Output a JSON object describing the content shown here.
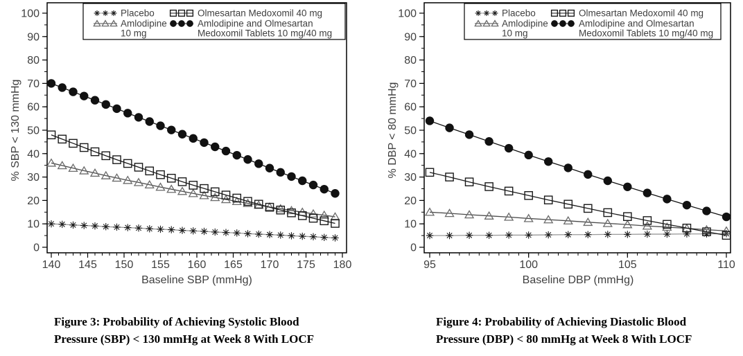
{
  "page": {
    "background": "#ffffff"
  },
  "colors": {
    "frame": "#000000",
    "tick_label": "#3f3f3f",
    "axis_title": "#3a3a3a",
    "legend_text": "#222222",
    "placebo_line": "#999999",
    "placebo_marker": "#1a1a1a",
    "amlodipine_line": "#4a4a4a",
    "amlodipine_marker": "#6a6a6a",
    "olmesartan_line": "#1a1a1a",
    "olmesartan_marker": "#1a1a1a",
    "combo_line": "#111111",
    "combo_marker": "#111111"
  },
  "legend": {
    "columns": [
      [
        {
          "marker": "asterisk",
          "lines": [
            "Placebo"
          ]
        },
        {
          "marker": "triangle-open",
          "lines": [
            "Amlodipine",
            "10 mg"
          ]
        }
      ],
      [
        {
          "marker": "square-open",
          "lines": [
            "Olmesartan Medoxomil 40 mg"
          ]
        },
        {
          "marker": "circle-filled",
          "lines": [
            "Amlodipine and Olmesartan",
            "Medoxomil Tablets 10 mg/40 mg"
          ]
        }
      ]
    ]
  },
  "chart_data": [
    {
      "id": "sbp",
      "type": "line",
      "xlabel": "Baseline SBP (mmHg)",
      "ylabel": "% SBP < 130 mmHg",
      "xlim": [
        140,
        180
      ],
      "ylim": [
        0,
        100
      ],
      "xticks": [
        140,
        145,
        150,
        155,
        160,
        165,
        170,
        175,
        180
      ],
      "yticks": [
        0,
        10,
        20,
        30,
        40,
        50,
        60,
        70,
        80,
        90,
        100
      ],
      "x_minor_step": 1,
      "y_minor_step": 5,
      "legend_position": "top-inside",
      "grid": false,
      "x": [
        140,
        141.5,
        143,
        144.5,
        146,
        147.5,
        149,
        150.5,
        152,
        153.5,
        155,
        156.5,
        158,
        159.5,
        161,
        162.5,
        164,
        165.5,
        167,
        168.5,
        170,
        171.5,
        173,
        174.5,
        176,
        177.5,
        179
      ],
      "series": [
        {
          "name": "Placebo",
          "marker": "asterisk",
          "marker_color": "#1a1a1a",
          "line_color": "#999999",
          "values": [
            10,
            9.8,
            9.5,
            9.3,
            9.1,
            8.8,
            8.6,
            8.4,
            8.2,
            7.9,
            7.7,
            7.5,
            7.2,
            7.0,
            6.8,
            6.5,
            6.3,
            6.1,
            5.8,
            5.6,
            5.4,
            5.2,
            4.9,
            4.7,
            4.5,
            4.2,
            4.0
          ]
        },
        {
          "name": "Amlodipine 10 mg",
          "marker": "triangle-open",
          "marker_color": "#6a6a6a",
          "line_color": "#4a4a4a",
          "values": [
            36,
            34.9,
            33.8,
            32.7,
            31.7,
            30.6,
            29.6,
            28.6,
            27.7,
            26.7,
            25.7,
            24.8,
            23.9,
            23.0,
            22.1,
            21.3,
            20.4,
            19.6,
            18.8,
            18.0,
            17.2,
            16.5,
            15.7,
            15.0,
            14.3,
            13.7,
            13.0
          ]
        },
        {
          "name": "Olmesartan Medoxomil 40 mg",
          "marker": "square-open",
          "marker_color": "#1a1a1a",
          "line_color": "#1a1a1a",
          "values": [
            48,
            46.2,
            44.4,
            42.6,
            40.8,
            39.1,
            37.4,
            35.8,
            34.2,
            32.6,
            31.0,
            29.5,
            28.0,
            26.5,
            25.1,
            23.7,
            22.3,
            21.0,
            19.6,
            18.4,
            17.1,
            15.9,
            14.7,
            13.5,
            12.4,
            11.3,
            10.2
          ]
        },
        {
          "name": "Amlodipine and Olmesartan Medoxomil Tablets 10 mg/40 mg",
          "marker": "circle-filled",
          "marker_color": "#111111",
          "line_color": "#111111",
          "values": [
            70,
            68.2,
            66.4,
            64.6,
            62.8,
            61.0,
            59.2,
            57.3,
            55.5,
            53.7,
            51.9,
            50.1,
            48.3,
            46.5,
            44.7,
            42.9,
            41.1,
            39.3,
            37.5,
            35.7,
            33.8,
            32.0,
            30.2,
            28.4,
            26.6,
            24.8,
            23.0
          ]
        }
      ],
      "caption_lines": [
        "Figure 3: Probability of Achieving Systolic Blood",
        "Pressure (SBP) < 130 mmHg at Week 8 With LOCF"
      ]
    },
    {
      "id": "dbp",
      "type": "line",
      "xlabel": "Baseline DBP (mmHg)",
      "ylabel": "% DBP < 80 mmHg",
      "xlim": [
        95,
        110
      ],
      "ylim": [
        0,
        100
      ],
      "xticks": [
        95,
        100,
        105,
        110
      ],
      "yticks": [
        0,
        10,
        20,
        30,
        40,
        50,
        60,
        70,
        80,
        90,
        100
      ],
      "x_minor_step": 0.5,
      "y_minor_step": 5,
      "legend_position": "top-inside",
      "grid": false,
      "x": [
        95,
        96,
        97,
        98,
        99,
        100,
        101,
        102,
        103,
        104,
        105,
        106,
        107,
        108,
        109,
        110
      ],
      "series": [
        {
          "name": "Placebo",
          "marker": "asterisk",
          "marker_color": "#1a1a1a",
          "line_color": "#999999",
          "values": [
            5.0,
            5.0,
            5.1,
            5.1,
            5.2,
            5.2,
            5.3,
            5.4,
            5.4,
            5.5,
            5.5,
            5.6,
            5.6,
            5.7,
            5.7,
            5.8
          ]
        },
        {
          "name": "Amlodipine 10 mg",
          "marker": "triangle-open",
          "marker_color": "#6a6a6a",
          "line_color": "#4a4a4a",
          "values": [
            15.0,
            14.5,
            13.9,
            13.4,
            12.9,
            12.3,
            11.8,
            11.3,
            10.7,
            10.2,
            9.7,
            9.1,
            8.6,
            8.1,
            7.5,
            7.0
          ]
        },
        {
          "name": "Olmesartan Medoxomil 40 mg",
          "marker": "square-open",
          "marker_color": "#1a1a1a",
          "line_color": "#1a1a1a",
          "values": [
            32.0,
            30.0,
            27.9,
            25.9,
            24.0,
            22.1,
            20.2,
            18.4,
            16.6,
            14.8,
            13.1,
            11.4,
            9.8,
            8.2,
            6.6,
            5.1
          ]
        },
        {
          "name": "Amlodipine and Olmesartan Medoxomil Tablets 10 mg/40 mg",
          "marker": "circle-filled",
          "marker_color": "#111111",
          "line_color": "#111111",
          "values": [
            54.0,
            51.0,
            48.1,
            45.2,
            42.3,
            39.4,
            36.6,
            33.9,
            31.1,
            28.4,
            25.8,
            23.2,
            20.6,
            18.0,
            15.5,
            13.0
          ]
        }
      ],
      "caption_lines": [
        "Figure 4: Probability of Achieving Diastolic Blood",
        "Pressure (DBP) < 80 mmHg at Week 8 With LOCF"
      ]
    }
  ]
}
